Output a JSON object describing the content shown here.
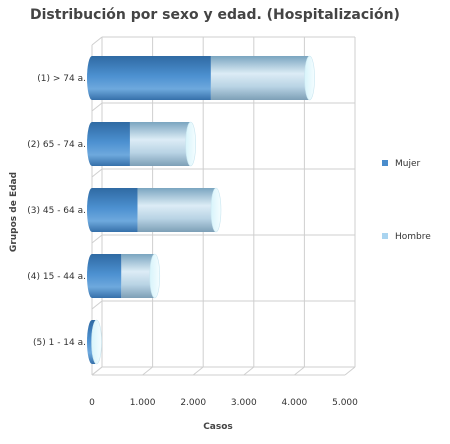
{
  "chart_data": {
    "type": "bar",
    "orientation": "horizontal",
    "stacked": true,
    "style": "3d-cylinder",
    "title": "Distribución por sexo y edad. (Hospitalización)",
    "xlabel": "Casos",
    "ylabel": "Grupos de Edad",
    "categories": [
      "(1) > 74 a.",
      "(2) 65 - 74 a.",
      "(3) 45 - 64 a.",
      "(4) 15 - 44 a.",
      "(5) 1 - 14 a."
    ],
    "series": [
      {
        "name": "Mujer",
        "values": [
          2350,
          750,
          900,
          580,
          60
        ],
        "color": "#4a8ccc"
      },
      {
        "name": "Hombre",
        "values": [
          1950,
          1200,
          1550,
          660,
          30
        ],
        "color": "#a9d4f0"
      }
    ],
    "xlim": [
      0,
      5000
    ],
    "xticks": [
      0,
      1000,
      2000,
      3000,
      4000,
      5000
    ],
    "xtick_labels": [
      "0",
      "1.000",
      "2.000",
      "3.000",
      "4.000",
      "5.000"
    ],
    "grid": true,
    "legend_position": "right"
  }
}
